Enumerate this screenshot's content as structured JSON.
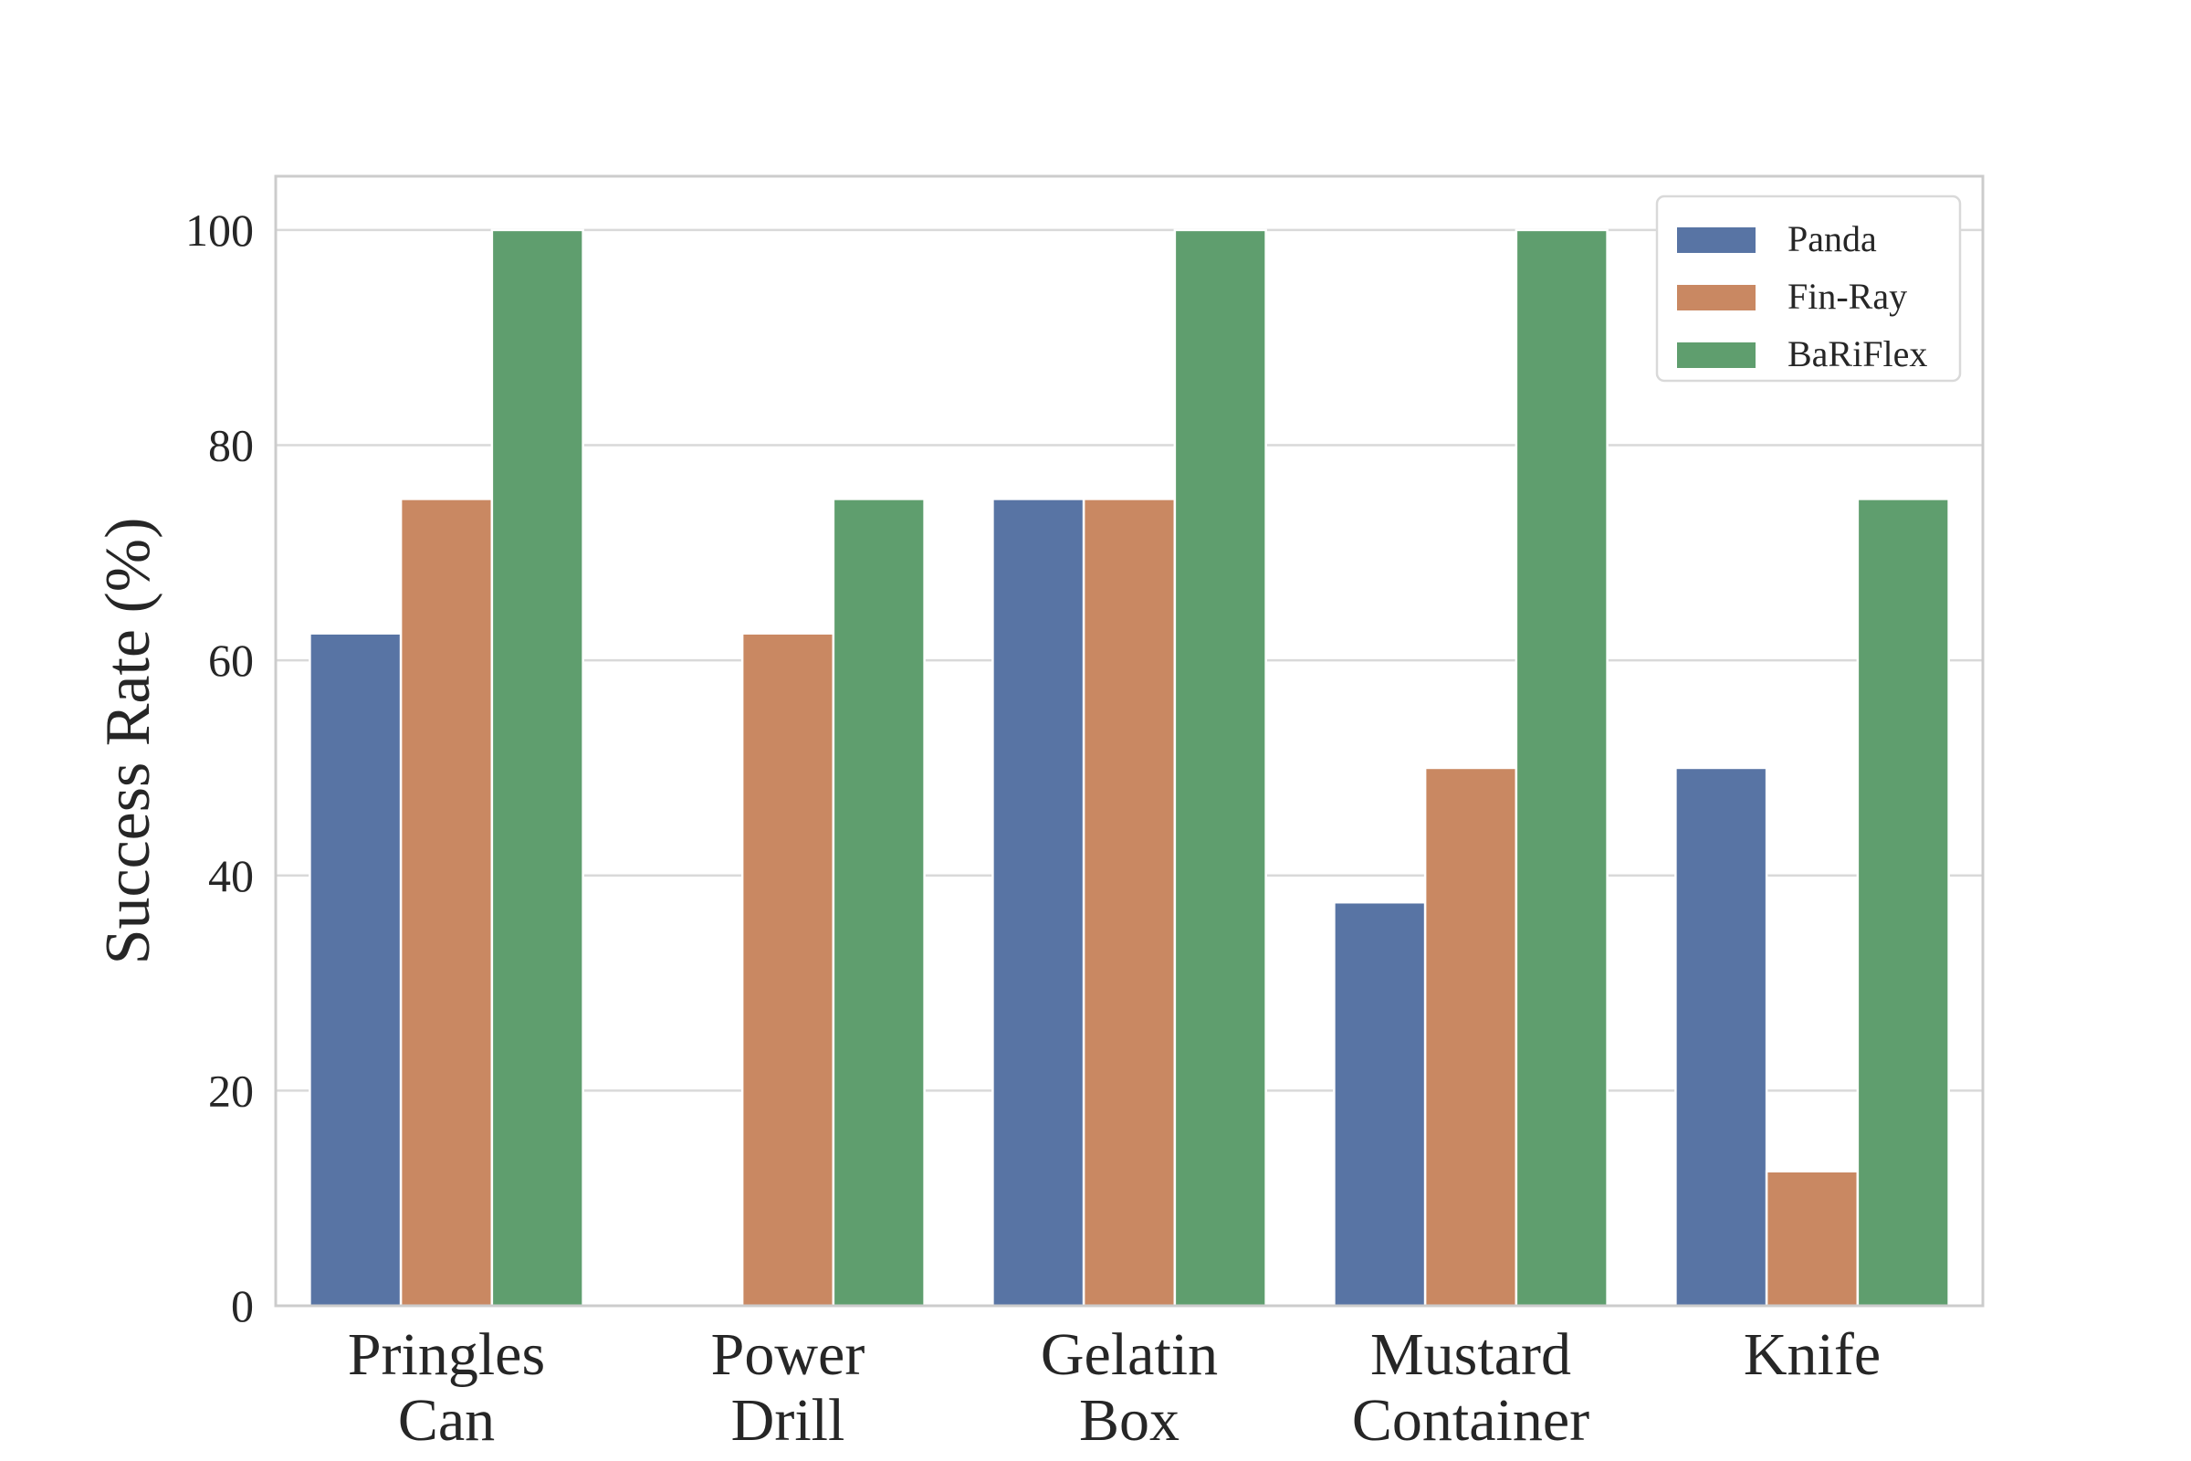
{
  "chart_data": {
    "type": "bar",
    "title": "",
    "xlabel": "",
    "ylabel": "Success Rate (%)",
    "ylim": [
      0,
      105
    ],
    "yticks": [
      0,
      20,
      40,
      60,
      80,
      100
    ],
    "grid": true,
    "legend_position": "top-right",
    "categories": [
      [
        "Pringles",
        "Can"
      ],
      [
        "Power",
        "Drill"
      ],
      [
        "Gelatin",
        "Box"
      ],
      [
        "Mustard",
        "Container"
      ],
      [
        "Knife"
      ]
    ],
    "series": [
      {
        "name": "Panda",
        "color": "#5874a4",
        "values": [
          62.5,
          0,
          75,
          37.5,
          50
        ]
      },
      {
        "name": "Fin-Ray",
        "color": "#c98862",
        "values": [
          75,
          62.5,
          75,
          50,
          12.5
        ]
      },
      {
        "name": "BaRiFlex",
        "color": "#5f9e6e",
        "values": [
          100,
          75,
          100,
          100,
          75
        ]
      }
    ]
  }
}
